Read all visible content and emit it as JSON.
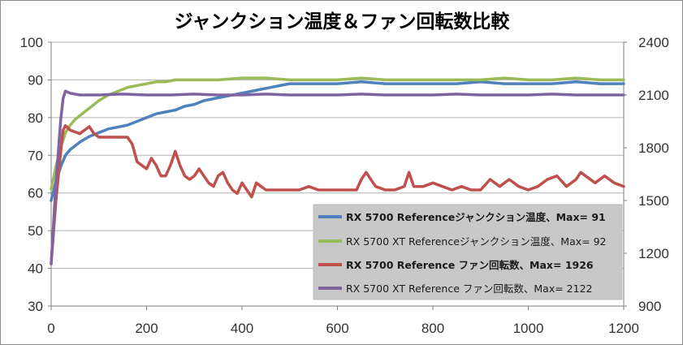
{
  "chart_data": {
    "type": "line",
    "title": "ジャンクション温度＆ファン回転数比較",
    "xlabel": "",
    "ylabel": "",
    "xlim": [
      0,
      1200
    ],
    "ylim": [
      30,
      100
    ],
    "y2lim": [
      900,
      2400
    ],
    "x_ticks": [
      "0",
      "200",
      "400",
      "600",
      "800",
      "1000",
      "1200"
    ],
    "y_ticks": [
      "30",
      "40",
      "50",
      "60",
      "70",
      "80",
      "90",
      "100"
    ],
    "y2_ticks": [
      "900",
      "1200",
      "1500",
      "1800",
      "2100",
      "2400"
    ],
    "grid": "horizontal",
    "legend_position": "bottom-right",
    "series": [
      {
        "name": "RX 5700 Referenceジャンクション温度、Max= 91",
        "axis": "left",
        "color": "#4f81bd",
        "bold": true,
        "x": [
          0,
          10,
          20,
          30,
          40,
          50,
          60,
          80,
          100,
          120,
          140,
          160,
          180,
          200,
          220,
          240,
          260,
          280,
          300,
          320,
          340,
          360,
          380,
          400,
          420,
          440,
          460,
          480,
          500,
          550,
          600,
          650,
          700,
          750,
          800,
          850,
          900,
          950,
          1000,
          1050,
          1100,
          1150,
          1200
        ],
        "values": [
          58,
          63,
          67,
          70,
          71.5,
          72.5,
          73.5,
          75,
          76,
          77,
          77.5,
          78,
          79,
          80,
          81,
          81.5,
          82,
          83,
          83.5,
          84.5,
          85,
          85.5,
          86,
          86.5,
          87,
          87.5,
          88,
          88.5,
          89,
          89,
          89,
          89.5,
          89,
          89,
          89,
          89,
          89.5,
          89,
          89,
          89,
          89.5,
          89,
          89
        ]
      },
      {
        "name": "RX 5700 XT Referenceジャンクション温度、Max= 92",
        "axis": "left",
        "color": "#9bbb59",
        "bold": false,
        "x": [
          0,
          10,
          20,
          30,
          40,
          50,
          60,
          80,
          100,
          120,
          140,
          160,
          180,
          200,
          220,
          240,
          260,
          280,
          300,
          350,
          400,
          450,
          500,
          550,
          600,
          650,
          700,
          750,
          800,
          850,
          900,
          950,
          1000,
          1050,
          1100,
          1150,
          1200
        ],
        "values": [
          61,
          67,
          72,
          76,
          78,
          79.5,
          80.5,
          82.5,
          84.5,
          86,
          87,
          88,
          88.5,
          89,
          89.5,
          89.5,
          90,
          90,
          90,
          90,
          90.5,
          90.5,
          90,
          90,
          90,
          90.5,
          90,
          90,
          90,
          90,
          90,
          90.5,
          90,
          90,
          90.5,
          90,
          90
        ]
      },
      {
        "name": "RX 5700 Reference ファン回転数、Max= 1926",
        "axis": "right",
        "color": "#c0504d",
        "bold": true,
        "x": [
          0,
          10,
          20,
          25,
          30,
          40,
          50,
          60,
          70,
          80,
          90,
          100,
          120,
          140,
          160,
          170,
          180,
          190,
          200,
          210,
          220,
          230,
          240,
          250,
          260,
          270,
          280,
          290,
          300,
          310,
          320,
          330,
          340,
          350,
          360,
          370,
          380,
          390,
          400,
          410,
          420,
          430,
          440,
          450,
          460,
          480,
          500,
          520,
          540,
          560,
          580,
          600,
          620,
          640,
          650,
          660,
          680,
          700,
          720,
          740,
          750,
          760,
          780,
          800,
          820,
          840,
          860,
          880,
          900,
          920,
          940,
          960,
          980,
          1000,
          1020,
          1040,
          1060,
          1080,
          1100,
          1110,
          1120,
          1140,
          1160,
          1180,
          1200
        ],
        "values": [
          1140,
          1500,
          1780,
          1900,
          1926,
          1900,
          1890,
          1880,
          1900,
          1920,
          1880,
          1860,
          1860,
          1860,
          1860,
          1820,
          1720,
          1700,
          1680,
          1740,
          1700,
          1640,
          1640,
          1700,
          1780,
          1700,
          1640,
          1620,
          1640,
          1680,
          1640,
          1600,
          1580,
          1640,
          1660,
          1600,
          1560,
          1540,
          1600,
          1560,
          1520,
          1600,
          1580,
          1560,
          1560,
          1560,
          1560,
          1560,
          1580,
          1560,
          1560,
          1560,
          1560,
          1560,
          1620,
          1660,
          1580,
          1560,
          1560,
          1580,
          1660,
          1580,
          1580,
          1600,
          1580,
          1560,
          1580,
          1560,
          1560,
          1620,
          1580,
          1620,
          1580,
          1560,
          1580,
          1620,
          1640,
          1580,
          1620,
          1660,
          1640,
          1600,
          1640,
          1600,
          1580
        ]
      },
      {
        "name": "RX 5700 XT Reference ファン回転数、Max= 2122",
        "axis": "right",
        "color": "#8064a2",
        "bold": false,
        "x": [
          0,
          10,
          20,
          25,
          30,
          40,
          60,
          80,
          100,
          150,
          200,
          250,
          300,
          350,
          400,
          450,
          500,
          550,
          600,
          650,
          700,
          750,
          800,
          850,
          900,
          950,
          1000,
          1050,
          1100,
          1150,
          1200
        ],
        "values": [
          1140,
          1600,
          1960,
          2080,
          2122,
          2110,
          2100,
          2100,
          2100,
          2105,
          2100,
          2100,
          2105,
          2100,
          2100,
          2105,
          2100,
          2100,
          2100,
          2105,
          2100,
          2100,
          2100,
          2105,
          2100,
          2100,
          2100,
          2105,
          2100,
          2100,
          2100
        ]
      }
    ]
  }
}
